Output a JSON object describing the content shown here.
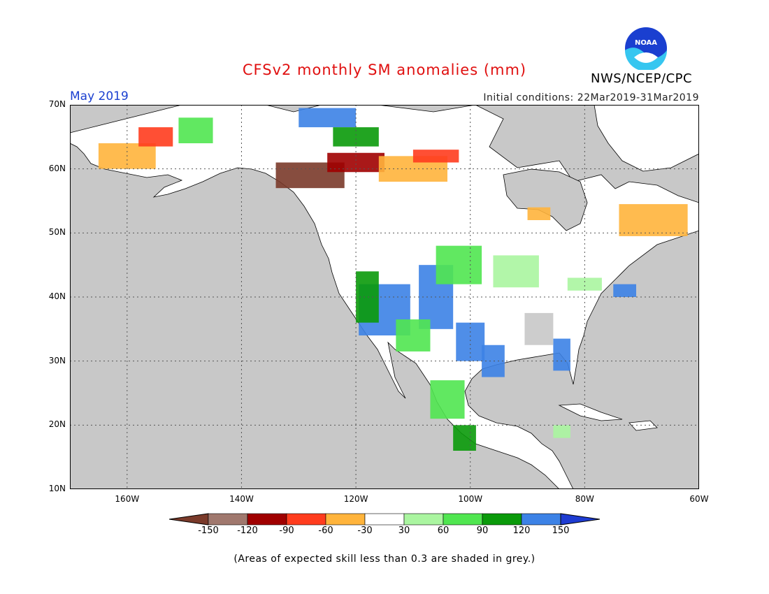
{
  "title": "CFSv2 monthly SM anomalies (mm)",
  "period": "May 2019",
  "initial_conditions": "Initial conditions: 22Mar2019-31Mar2019",
  "agency": "NWS/NCEP/CPC",
  "logo_text": "NOAA",
  "footnote": "(Areas of expected skill less than 0.3 are shaded in grey.)",
  "map": {
    "lon_range": [
      -170,
      -60
    ],
    "lat_range": [
      10,
      70
    ],
    "lat_ticks": [
      "70N",
      "60N",
      "50N",
      "40N",
      "30N",
      "20N",
      "10N"
    ],
    "lon_ticks": [
      "160W",
      "140W",
      "120W",
      "100W",
      "80W",
      "60W"
    ],
    "ocean_color": "#c8c8c8",
    "land_color": "#ffffff",
    "gridlines": "dotted"
  },
  "legend": {
    "labels": [
      "-150",
      "-120",
      "-90",
      "-60",
      "-30",
      "30",
      "60",
      "90",
      "120",
      "150"
    ],
    "colors": [
      "#7a3a2a",
      "#a0786e",
      "#a00000",
      "#ff3c1e",
      "#ffb43c",
      "#ffffff",
      "#aaf5a0",
      "#50e650",
      "#0a9a0a",
      "#3c82e6",
      "#1e3cd2"
    ]
  },
  "anomaly_patches": [
    {
      "lon": -115,
      "lat": 38,
      "w": 9,
      "h": 8,
      "color": "#3c82e6"
    },
    {
      "lon": -106,
      "lat": 40,
      "w": 6,
      "h": 10,
      "color": "#3c82e6"
    },
    {
      "lon": -100,
      "lat": 33,
      "w": 5,
      "h": 6,
      "color": "#3c82e6"
    },
    {
      "lon": -110,
      "lat": 34,
      "w": 6,
      "h": 5,
      "color": "#50e650"
    },
    {
      "lon": -118,
      "lat": 40,
      "w": 4,
      "h": 8,
      "color": "#0a9a0a"
    },
    {
      "lon": -102,
      "lat": 45,
      "w": 8,
      "h": 6,
      "color": "#50e650"
    },
    {
      "lon": -92,
      "lat": 44,
      "w": 8,
      "h": 5,
      "color": "#aaf5a0"
    },
    {
      "lon": -104,
      "lat": 24,
      "w": 6,
      "h": 6,
      "color": "#50e650"
    },
    {
      "lon": -96,
      "lat": 30,
      "w": 4,
      "h": 5,
      "color": "#3c82e6"
    },
    {
      "lon": -84,
      "lat": 31,
      "w": 3,
      "h": 5,
      "color": "#3c82e6"
    },
    {
      "lon": -88,
      "lat": 35,
      "w": 5,
      "h": 5,
      "color": "#c8c8c8"
    },
    {
      "lon": -128,
      "lat": 59,
      "w": 12,
      "h": 4,
      "color": "#7a3a2a"
    },
    {
      "lon": -120,
      "lat": 61,
      "w": 10,
      "h": 3,
      "color": "#a00000"
    },
    {
      "lon": -110,
      "lat": 60,
      "w": 12,
      "h": 4,
      "color": "#ffb43c"
    },
    {
      "lon": -106,
      "lat": 62,
      "w": 8,
      "h": 2,
      "color": "#ff3c1e"
    },
    {
      "lon": -160,
      "lat": 62,
      "w": 10,
      "h": 4,
      "color": "#ffb43c"
    },
    {
      "lon": -155,
      "lat": 65,
      "w": 6,
      "h": 3,
      "color": "#ff3c1e"
    },
    {
      "lon": -148,
      "lat": 66,
      "w": 6,
      "h": 4,
      "color": "#50e650"
    },
    {
      "lon": -125,
      "lat": 68,
      "w": 10,
      "h": 3,
      "color": "#3c82e6"
    },
    {
      "lon": -120,
      "lat": 65,
      "w": 8,
      "h": 3,
      "color": "#0a9a0a"
    },
    {
      "lon": -68,
      "lat": 52,
      "w": 12,
      "h": 5,
      "color": "#ffb43c"
    },
    {
      "lon": -88,
      "lat": 53,
      "w": 4,
      "h": 2,
      "color": "#ffb43c"
    },
    {
      "lon": -73,
      "lat": 41,
      "w": 4,
      "h": 2,
      "color": "#3c82e6"
    },
    {
      "lon": -80,
      "lat": 42,
      "w": 6,
      "h": 2,
      "color": "#aaf5a0"
    },
    {
      "lon": -101,
      "lat": 18,
      "w": 4,
      "h": 4,
      "color": "#0a9a0a"
    },
    {
      "lon": -84,
      "lat": 19,
      "w": 3,
      "h": 2,
      "color": "#aaf5a0"
    }
  ]
}
